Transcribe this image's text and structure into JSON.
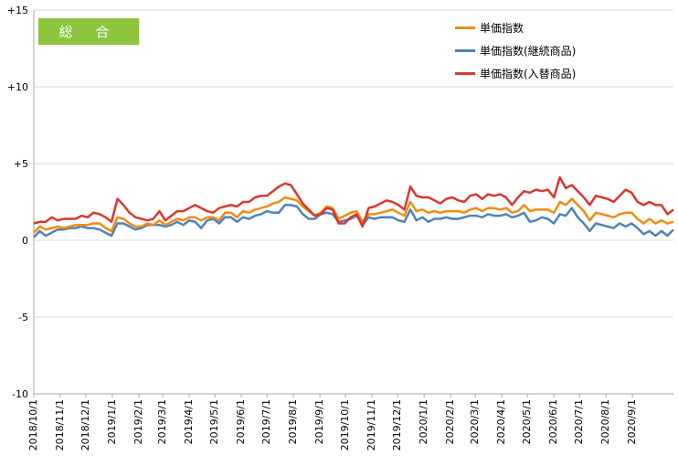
{
  "badge": {
    "label": "総 合"
  },
  "chart_data": {
    "type": "line",
    "y_ticks": [
      "+15",
      "+10",
      "+5",
      "0",
      "-5",
      "-10"
    ],
    "y_tick_values": [
      15,
      10,
      5,
      0,
      -5,
      -10
    ],
    "ylim": [
      -10,
      15
    ],
    "x_ticks": [
      "2018/10/1",
      "2018/11/1",
      "2018/12/1",
      "2019/1/1",
      "2019/2/1",
      "2019/3/1",
      "2019/4/1",
      "2019/5/1",
      "2019/6/1",
      "2019/7/1",
      "2019/8/1",
      "2019/9/1",
      "2019/10/1",
      "2019/11/1",
      "2019/12/1",
      "2020/1/1",
      "2020/2/1",
      "2020/3/1",
      "2020/4/1",
      "2020/5/1",
      "2020/6/1",
      "2020/7/1",
      "2020/8/1",
      "2020/9/1"
    ],
    "x_tick_index": [
      0,
      4.43,
      8.71,
      13.14,
      17.57,
      21.57,
      26,
      30.29,
      34.71,
      39,
      43.43,
      47.86,
      52.14,
      56.57,
      60.86,
      65.29,
      69.71,
      73.86,
      78.29,
      82.57,
      87,
      91.29,
      95.71,
      100.14
    ],
    "grid": "horizontal",
    "legend": "top-right",
    "series": [
      {
        "name": "単価指数",
        "color": "#f28c0f",
        "values": [
          0.5,
          0.9,
          0.7,
          0.8,
          0.9,
          0.8,
          0.9,
          1,
          1,
          1,
          1.1,
          1.1,
          0.8,
          0.6,
          1.5,
          1.4,
          1.1,
          0.9,
          0.9,
          1.1,
          1,
          1.3,
          1,
          1.2,
          1.4,
          1.3,
          1.5,
          1.5,
          1.3,
          1.5,
          1.5,
          1.3,
          1.8,
          1.8,
          1.5,
          1.9,
          1.8,
          2,
          2.1,
          2.2,
          2.4,
          2.5,
          2.8,
          2.7,
          2.6,
          2.2,
          1.9,
          1.6,
          1.8,
          2.2,
          2.1,
          1.4,
          1.6,
          1.8,
          1.9,
          1.2,
          1.7,
          1.7,
          1.8,
          1.9,
          2,
          1.8,
          1.6,
          2.5,
          1.9,
          2,
          1.8,
          1.9,
          1.8,
          1.9,
          1.9,
          1.9,
          1.8,
          2,
          2.1,
          1.9,
          2.1,
          2.1,
          2,
          2.1,
          1.8,
          1.9,
          2.3,
          1.9,
          2,
          2,
          2,
          1.8,
          2.5,
          2.3,
          2.7,
          2.3,
          1.9,
          1.3,
          1.8,
          1.7,
          1.6,
          1.5,
          1.7,
          1.8,
          1.8,
          1.4,
          1.1,
          1.4,
          1.1,
          1.3,
          1.1,
          1.2
        ]
      },
      {
        "name": "単価指数(継続商品)",
        "color": "#4f81bd",
        "values": [
          0.2,
          0.6,
          0.3,
          0.5,
          0.7,
          0.7,
          0.8,
          0.8,
          0.9,
          0.8,
          0.8,
          0.7,
          0.5,
          0.3,
          1.1,
          1.1,
          0.9,
          0.7,
          0.8,
          1,
          1,
          1,
          0.9,
          1,
          1.2,
          1,
          1.3,
          1.2,
          0.8,
          1.3,
          1.4,
          1.1,
          1.5,
          1.5,
          1.2,
          1.5,
          1.4,
          1.6,
          1.7,
          1.9,
          1.8,
          1.8,
          2.3,
          2.3,
          2.2,
          1.7,
          1.4,
          1.4,
          1.7,
          1.8,
          1.7,
          1.2,
          1.3,
          1.4,
          1.6,
          1,
          1.5,
          1.4,
          1.5,
          1.5,
          1.5,
          1.3,
          1.2,
          2,
          1.3,
          1.5,
          1.2,
          1.4,
          1.4,
          1.5,
          1.4,
          1.4,
          1.5,
          1.6,
          1.6,
          1.5,
          1.7,
          1.6,
          1.6,
          1.7,
          1.5,
          1.6,
          1.8,
          1.2,
          1.3,
          1.5,
          1.4,
          1.1,
          1.7,
          1.6,
          2.1,
          1.5,
          1.1,
          0.6,
          1.1,
          1,
          0.9,
          0.8,
          1.1,
          0.9,
          1.1,
          0.8,
          0.4,
          0.6,
          0.3,
          0.6,
          0.3,
          0.7
        ]
      },
      {
        "name": "単価指数(入替商品)",
        "color": "#d9372f",
        "values": [
          1.1,
          1.2,
          1.2,
          1.5,
          1.3,
          1.4,
          1.4,
          1.4,
          1.6,
          1.5,
          1.8,
          1.7,
          1.5,
          1.2,
          2.7,
          2.3,
          1.8,
          1.5,
          1.4,
          1.3,
          1.4,
          1.9,
          1.3,
          1.6,
          1.9,
          1.9,
          2.1,
          2.3,
          2.1,
          1.9,
          1.8,
          2.1,
          2.2,
          2.3,
          2.2,
          2.5,
          2.5,
          2.8,
          2.9,
          2.9,
          3.2,
          3.5,
          3.7,
          3.6,
          3,
          2.4,
          2,
          1.6,
          1.7,
          2.1,
          2,
          1.1,
          1.1,
          1.5,
          1.7,
          0.9,
          2.1,
          2.2,
          2.4,
          2.6,
          2.5,
          2.3,
          2,
          3.5,
          2.9,
          2.8,
          2.8,
          2.6,
          2.4,
          2.7,
          2.8,
          2.6,
          2.5,
          2.9,
          3,
          2.7,
          3,
          2.9,
          3,
          2.8,
          2.3,
          2.8,
          3.2,
          3.1,
          3.3,
          3.2,
          3.3,
          2.8,
          4.1,
          3.4,
          3.6,
          3.2,
          2.8,
          2.3,
          2.9,
          2.8,
          2.7,
          2.5,
          2.9,
          3.3,
          3.1,
          2.5,
          2.3,
          2.5,
          2.3,
          2.3,
          1.7,
          2
        ]
      }
    ]
  }
}
